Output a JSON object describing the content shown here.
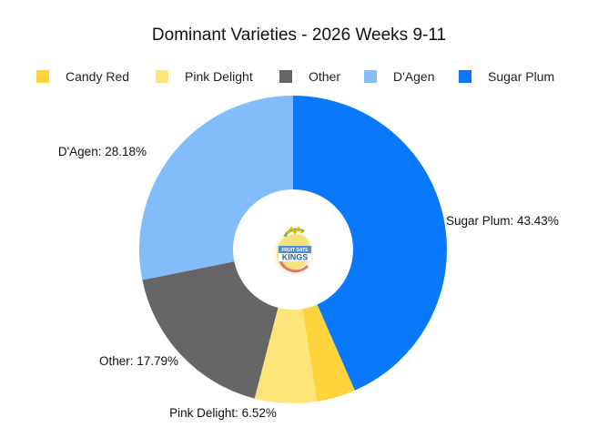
{
  "chart_data": {
    "type": "pie",
    "title": "Dominant Varieties - 2026 Weeks 9-11",
    "donut": true,
    "legend_position": "top",
    "series": [
      {
        "name": "Candy Red",
        "value": 4.08,
        "color": "#FFD43B",
        "label": ""
      },
      {
        "name": "Pink Delight",
        "value": 6.52,
        "color": "#FFE479",
        "label": "Pink Delight: 6.52%"
      },
      {
        "name": "Other",
        "value": 17.79,
        "color": "#666666",
        "label": "Other: 17.79%"
      },
      {
        "name": "D'Agen",
        "value": 28.18,
        "color": "#82BCFA",
        "label": "D'Agen: 28.18%"
      },
      {
        "name": "Sugar Plum",
        "value": 43.43,
        "color": "#0A78FB",
        "label": "Sugar Plum: 43.43%"
      }
    ],
    "slice_order_clockwise_from_top": [
      "Sugar Plum",
      "Candy Red",
      "Pink Delight",
      "Other",
      "D'Agen"
    ]
  },
  "logo": {
    "name": "fruit-date-kings-logo",
    "text_top": "FRUIT DATE",
    "text_main": "KINGS"
  }
}
